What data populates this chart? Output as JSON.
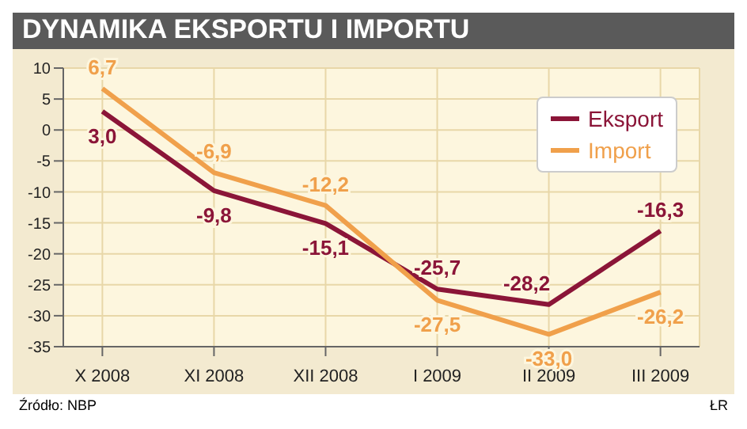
{
  "chart_data": {
    "type": "line",
    "title": "DYNAMIKA EKSPORTU I IMPORTU",
    "categories": [
      "X 2008",
      "XI 2008",
      "XII 2008",
      "I 2009",
      "II 2009",
      "III 2009"
    ],
    "series": [
      {
        "name": "Eksport",
        "color": "#8b1538",
        "values": [
          3.0,
          -9.8,
          -15.1,
          -25.7,
          -28.2,
          -16.3
        ],
        "value_labels": [
          "3,0",
          "-9,8",
          "-15,1",
          "-25,7",
          "-28,2",
          "-16,3"
        ]
      },
      {
        "name": "Import",
        "color": "#f0a04b",
        "values": [
          6.7,
          -6.9,
          -12.2,
          -27.5,
          -33.0,
          -26.2
        ],
        "value_labels": [
          "6,7",
          "-6,9",
          "-12,2",
          "-27,5",
          "-33,0",
          "-26,2"
        ]
      }
    ],
    "ylim": [
      -35,
      10
    ],
    "yticks": [
      -35,
      -30,
      -25,
      -20,
      -15,
      -10,
      -5,
      0,
      5,
      10
    ],
    "grid": true,
    "legend": "top right",
    "marker": "none",
    "line_style": "solid",
    "annotations": [
      "Źródło: NBP",
      "ŁR"
    ]
  }
}
